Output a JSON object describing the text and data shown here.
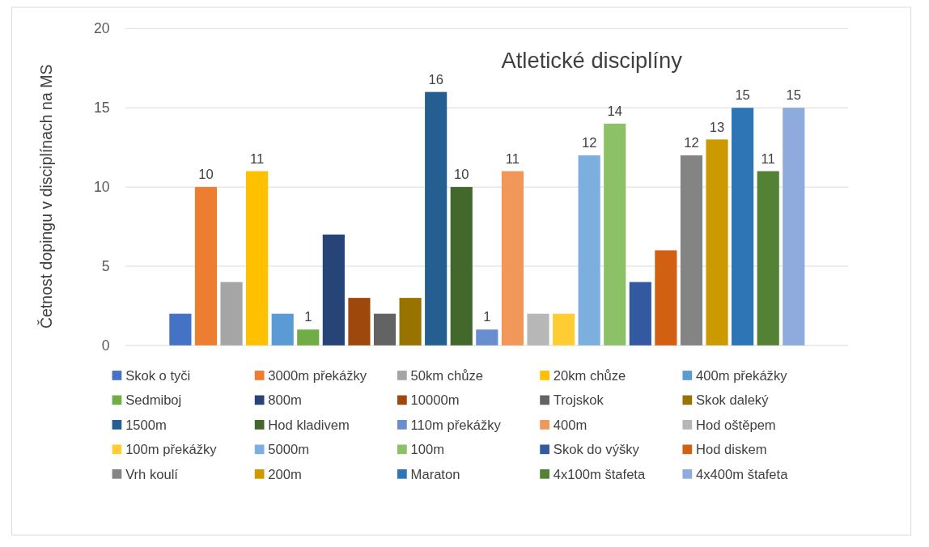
{
  "chart_data": {
    "type": "bar",
    "title": "Atletické disciplíny",
    "ylabel": "Četnost dopingu v disciplínach na MS",
    "categories": [
      null
    ],
    "ylim": [
      0,
      20
    ],
    "yticks": [
      0,
      5,
      10,
      15,
      20
    ],
    "grid": "y",
    "legend": "bottom",
    "series": [
      {
        "name": "Skok o tyči",
        "color": "#4472c4",
        "values": [
          2
        ],
        "value_labels": [
          null
        ]
      },
      {
        "name": "3000m překážky",
        "color": "#ed7d31",
        "values": [
          10
        ],
        "value_labels": [
          "10"
        ]
      },
      {
        "name": "50km chůze",
        "color": "#a5a5a5",
        "values": [
          4
        ],
        "value_labels": [
          null
        ]
      },
      {
        "name": "20km chůze",
        "color": "#ffc000",
        "values": [
          11
        ],
        "value_labels": [
          "11"
        ]
      },
      {
        "name": "400m překážky",
        "color": "#5b9bd5",
        "values": [
          2
        ],
        "value_labels": [
          null
        ]
      },
      {
        "name": "Sedmiboj",
        "color": "#70ad47",
        "values": [
          1
        ],
        "value_labels": [
          "1"
        ]
      },
      {
        "name": "800m",
        "color": "#264478",
        "values": [
          7
        ],
        "value_labels": [
          null
        ]
      },
      {
        "name": "10000m",
        "color": "#9e480e",
        "values": [
          3
        ],
        "value_labels": [
          null
        ]
      },
      {
        "name": "Trojskok",
        "color": "#636363",
        "values": [
          2
        ],
        "value_labels": [
          null
        ]
      },
      {
        "name": "Skok daleký",
        "color": "#997300",
        "values": [
          3
        ],
        "value_labels": [
          null
        ]
      },
      {
        "name": "1500m",
        "color": "#255e91",
        "values": [
          16
        ],
        "value_labels": [
          "16"
        ]
      },
      {
        "name": "Hod kladivem",
        "color": "#43682b",
        "values": [
          10
        ],
        "value_labels": [
          "10"
        ]
      },
      {
        "name": "110m překážky",
        "color": "#698ed0",
        "values": [
          1
        ],
        "value_labels": [
          "1"
        ]
      },
      {
        "name": "400m",
        "color": "#f1975a",
        "values": [
          11
        ],
        "value_labels": [
          "11"
        ]
      },
      {
        "name": "Hod oštěpem",
        "color": "#b7b7b7",
        "values": [
          2
        ],
        "value_labels": [
          null
        ]
      },
      {
        "name": "100m překážky",
        "color": "#ffcd33",
        "values": [
          2
        ],
        "value_labels": [
          null
        ]
      },
      {
        "name": "5000m",
        "color": "#7cafdd",
        "values": [
          12
        ],
        "value_labels": [
          "12"
        ]
      },
      {
        "name": "100m",
        "color": "#8cc168",
        "values": [
          14
        ],
        "value_labels": [
          "14"
        ]
      },
      {
        "name": "Skok do výšky",
        "color": "#335aa1",
        "values": [
          4
        ],
        "value_labels": [
          null
        ]
      },
      {
        "name": "Hod diskem",
        "color": "#d26012",
        "values": [
          6
        ],
        "value_labels": [
          null
        ]
      },
      {
        "name": "Vrh koulí",
        "color": "#848484",
        "values": [
          12
        ],
        "value_labels": [
          "12"
        ]
      },
      {
        "name": "200m",
        "color": "#cc9a00",
        "values": [
          13
        ],
        "value_labels": [
          "13"
        ]
      },
      {
        "name": "Maraton",
        "color": "#2e75b6",
        "values": [
          15
        ],
        "value_labels": [
          "15"
        ]
      },
      {
        "name": "4x100m štafeta",
        "color": "#548235",
        "values": [
          11
        ],
        "value_labels": [
          "11"
        ]
      },
      {
        "name": "4x400m štafeta",
        "color": "#8faadc",
        "values": [
          15
        ],
        "value_labels": [
          "15"
        ]
      }
    ]
  }
}
